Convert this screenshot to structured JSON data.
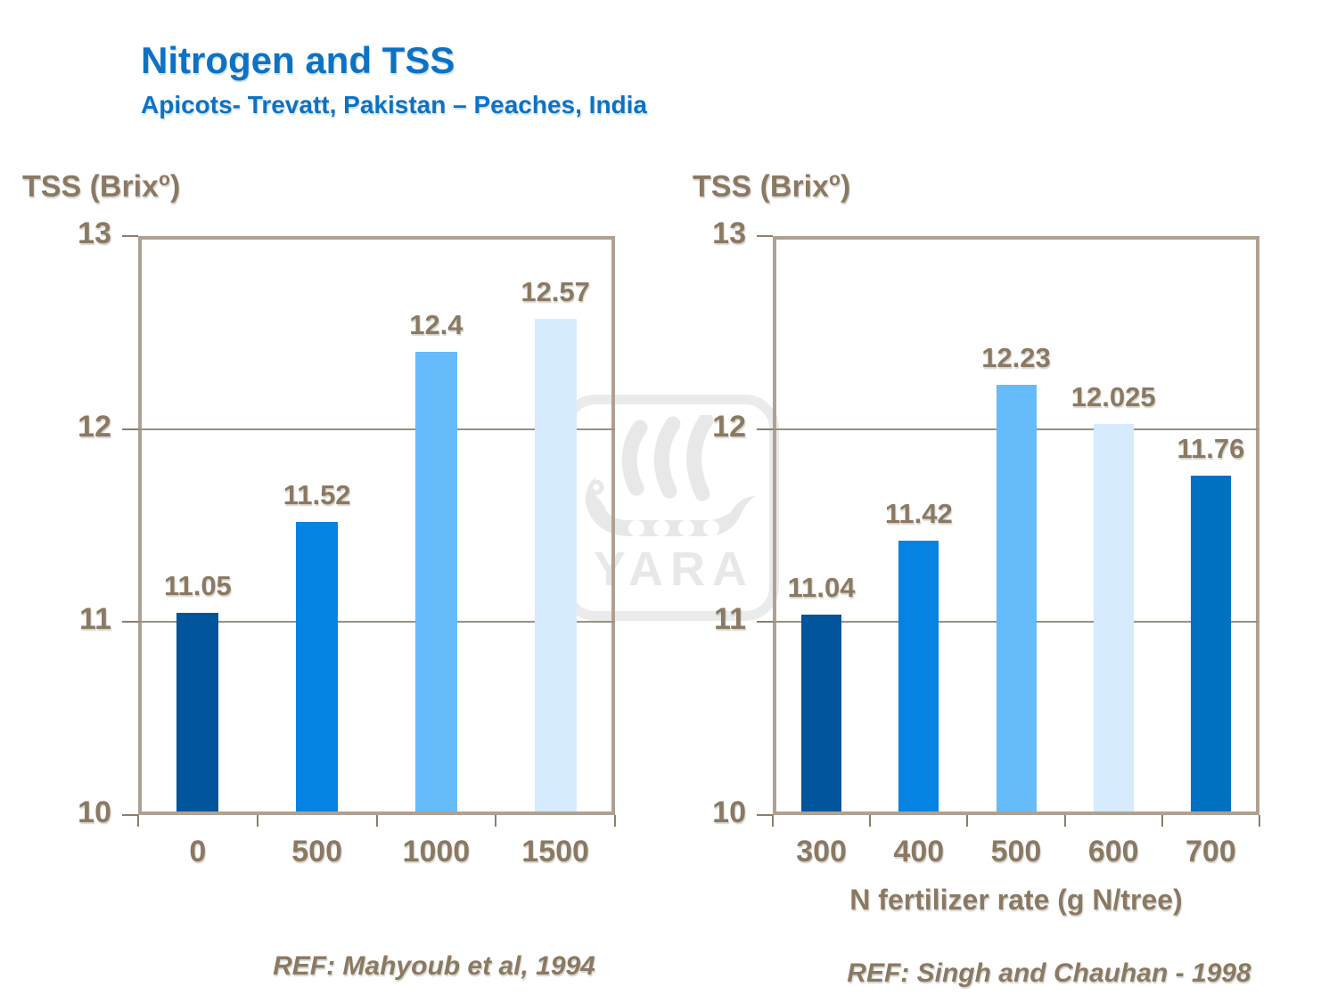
{
  "header": {
    "title": "Nitrogen and TSS",
    "subtitle": "Apicots- Trevatt, Pakistan – Peaches,  India"
  },
  "watermark": {
    "text": "YARA"
  },
  "colors": {
    "title_blue": "#0D72C4",
    "text_brown": "#8A7963",
    "frame_tan": "#AFA192",
    "gridline_gray": "#9A9083",
    "tick_brown": "#8C7E6C",
    "watermark_gray": "#E8E8E8",
    "bar_dark_navy": "#00559B",
    "bar_bright_blue": "#0583E3",
    "bar_sky_blue": "#66BBFB",
    "bar_pale_blue": "#D6EBFD",
    "bar_medium_blue": "#0070C0"
  },
  "chart_data": [
    {
      "type": "bar",
      "title": "Apricots - Trevatt, Pakistan",
      "ylabel_prefix": "TSS (Brix",
      "ylabel_sup": "o",
      "ylabel_suffix": ")",
      "ylim": [
        10,
        13
      ],
      "yticks": [
        "13",
        "12",
        "11",
        "10"
      ],
      "gridlines_at": [
        12,
        11
      ],
      "categories": [
        "0",
        "500",
        "1000",
        "1500"
      ],
      "values": [
        11.05,
        11.52,
        12.4,
        12.57
      ],
      "value_labels": [
        "11.05",
        "11.52",
        "12.4",
        "12.57"
      ],
      "bar_colors": [
        "#00559B",
        "#0583E3",
        "#66BBFB",
        "#D6EBFD"
      ],
      "xlabel": "",
      "reference": "REF: Mahyoub et al, 1994",
      "grid": "horizontal",
      "legend": "none"
    },
    {
      "type": "bar",
      "title": "Peaches, India",
      "ylabel_prefix": "TSS (Brix",
      "ylabel_sup": "o",
      "ylabel_suffix": ")",
      "ylim": [
        10,
        13
      ],
      "yticks": [
        "13",
        "12",
        "11",
        "10"
      ],
      "gridlines_at": [
        12,
        11
      ],
      "categories": [
        "300",
        "400",
        "500",
        "600",
        "700"
      ],
      "values": [
        11.04,
        11.42,
        12.23,
        12.025,
        11.76
      ],
      "value_labels": [
        "11.04",
        "11.42",
        "12.23",
        "12.025",
        "11.76"
      ],
      "bar_colors": [
        "#00559B",
        "#0583E3",
        "#66BBFB",
        "#D6EBFD",
        "#0070C0"
      ],
      "xlabel": "N fertilizer rate (g N/tree)",
      "reference": "REF: Singh and Chauhan - 1998",
      "grid": "horizontal",
      "legend": "none"
    }
  ]
}
